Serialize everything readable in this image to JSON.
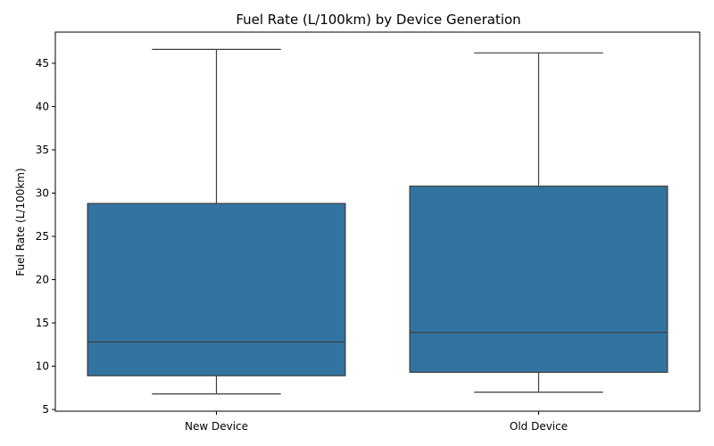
{
  "chart_data": {
    "type": "box",
    "title": "Fuel Rate (L/100km) by Device Generation",
    "xlabel": "",
    "ylabel": "Fuel Rate (L/100km)",
    "categories": [
      "New Device",
      "Old Device"
    ],
    "boxes": [
      {
        "category": "New Device",
        "whisker_low": 6.8,
        "q1": 8.9,
        "median": 12.8,
        "q3": 28.8,
        "whisker_high": 46.6
      },
      {
        "category": "Old Device",
        "whisker_low": 7.0,
        "q1": 9.3,
        "median": 13.9,
        "q3": 30.8,
        "whisker_high": 46.2
      }
    ],
    "ylim": [
      4.8,
      48.6
    ],
    "yticks": [
      5,
      10,
      15,
      20,
      25,
      30,
      35,
      40,
      45
    ],
    "grid": false,
    "legend": "none",
    "colors": {
      "box_fill": "#3274a1",
      "line": "#3d3d3d",
      "axis": "#000000"
    }
  }
}
